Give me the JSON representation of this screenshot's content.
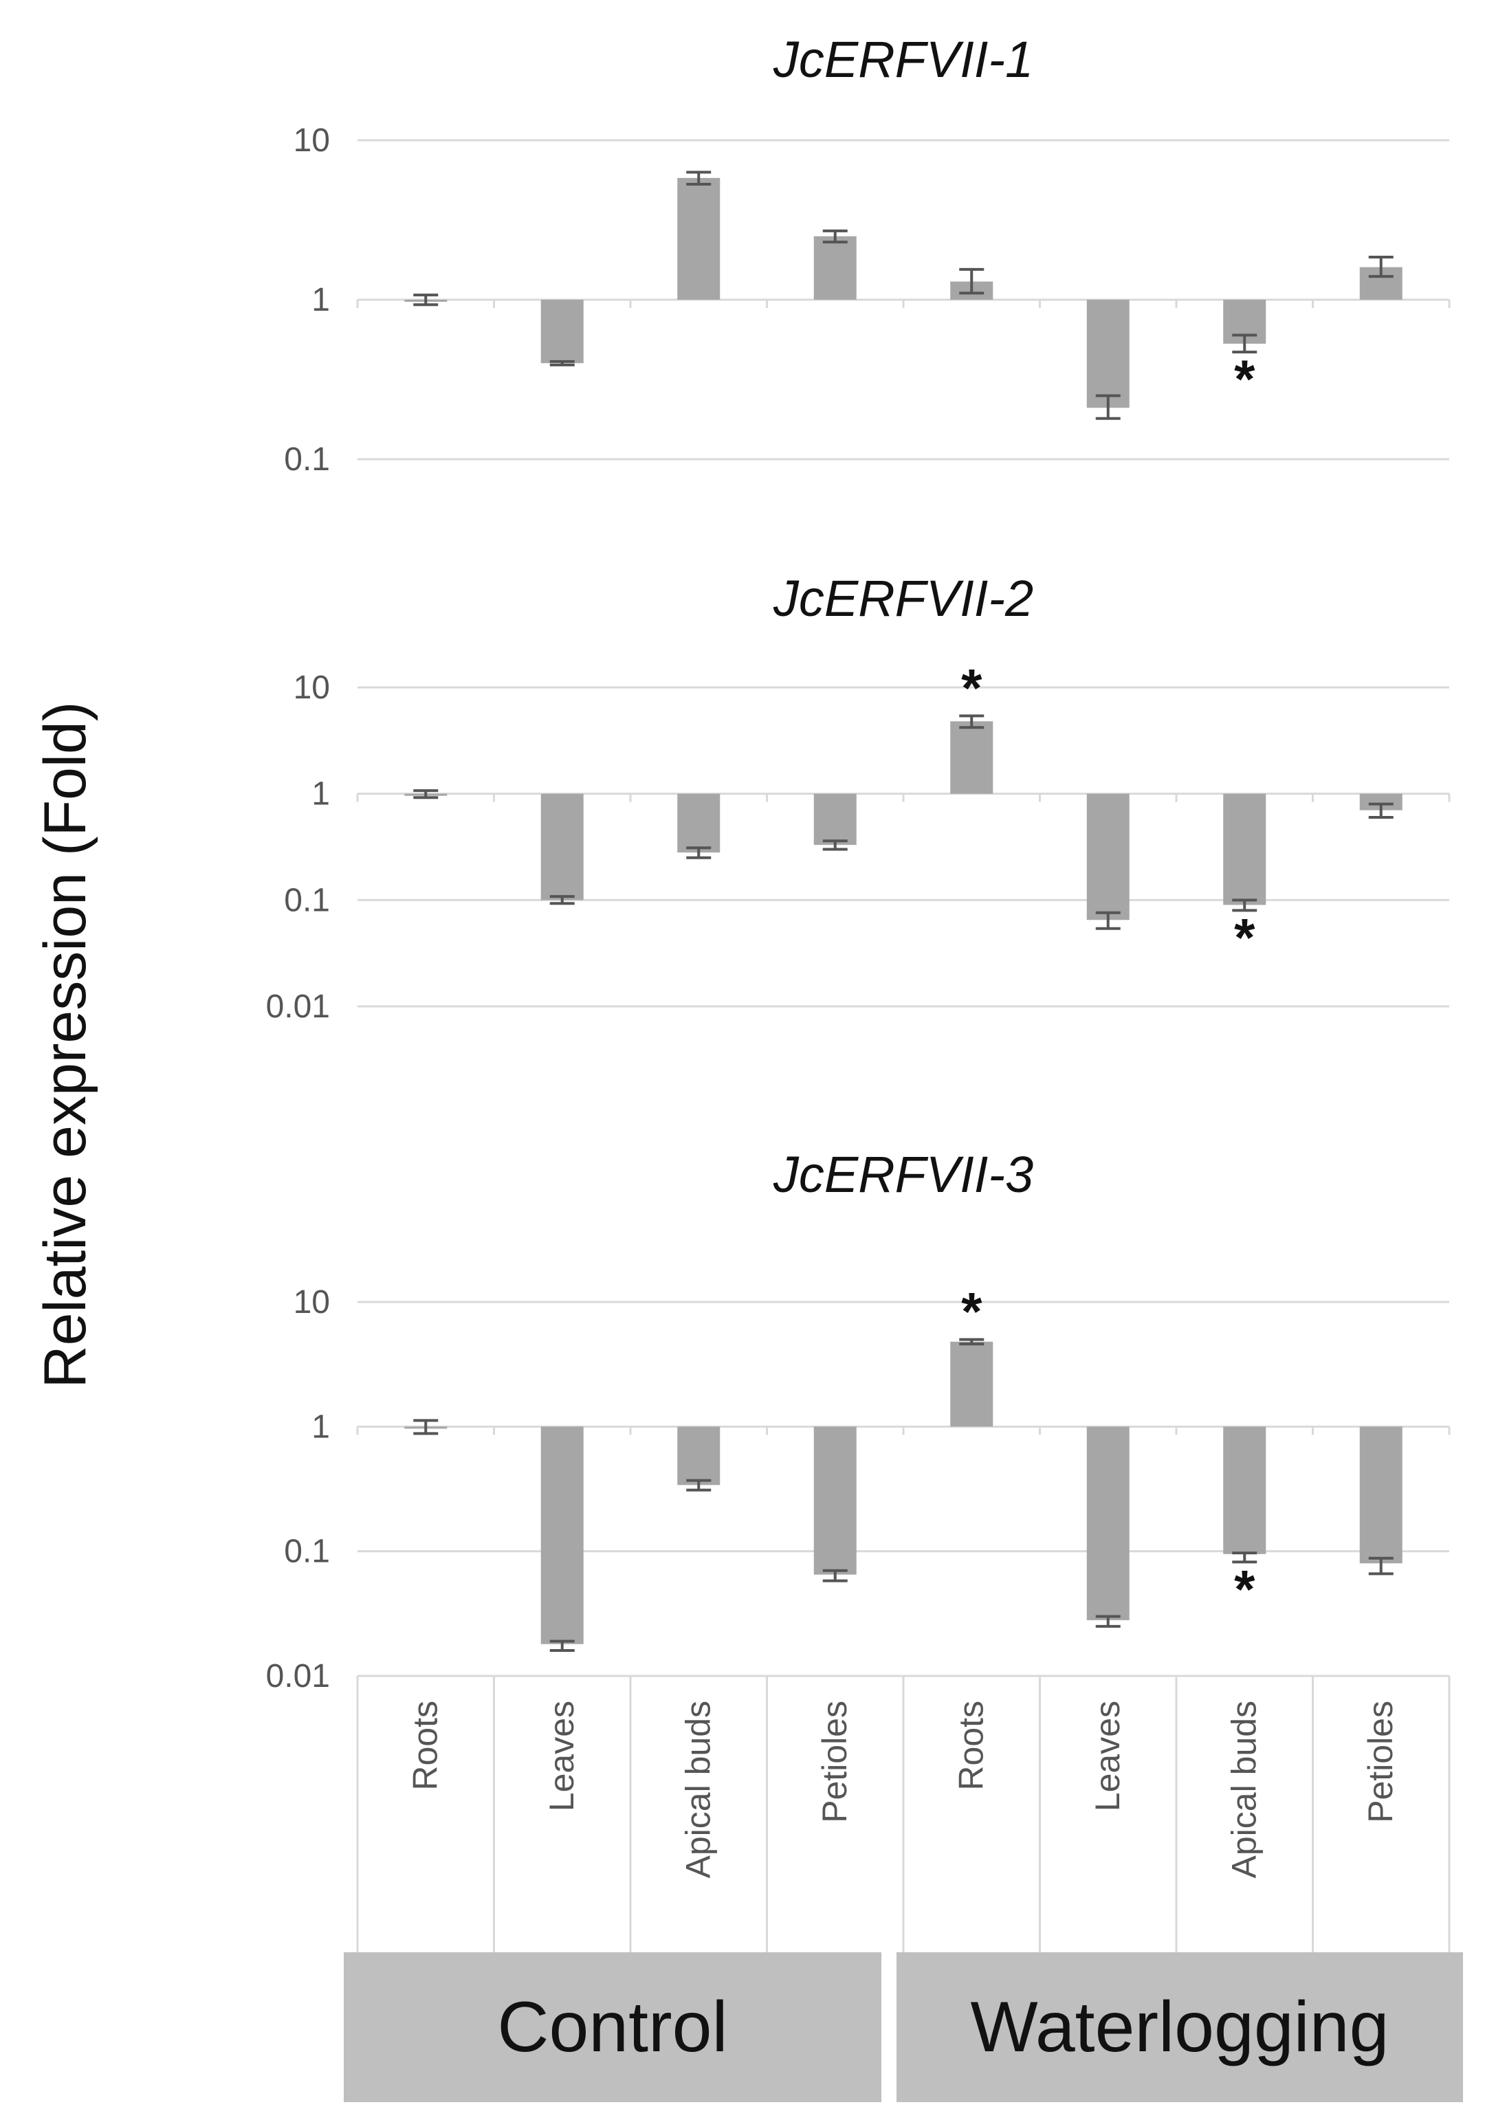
{
  "y_axis_label": "Relative expression (Fold)",
  "chart_data": {
    "type": "bar",
    "scale": "log",
    "categories": [
      "Roots",
      "Leaves",
      "Apical buds",
      "Petioles",
      "Roots",
      "Leaves",
      "Apical buds",
      "Petioles"
    ],
    "groups": [
      {
        "name": "Control",
        "categories": [
          "Roots",
          "Leaves",
          "Apical buds",
          "Petioles"
        ]
      },
      {
        "name": "Waterlogging",
        "categories": [
          "Roots",
          "Leaves",
          "Apical buds",
          "Petioles"
        ]
      }
    ],
    "ylabel": "Relative expression (Fold)",
    "bar_color": "#a6a6a6",
    "panels": [
      {
        "title": "JcERFVII-1",
        "ylim": [
          0.1,
          10
        ],
        "ticks": [
          {
            "value": 10,
            "label": "10"
          },
          {
            "value": 1,
            "label": "1"
          },
          {
            "value": 0.1,
            "label": "0.1"
          }
        ],
        "values": [
          1.0,
          0.4,
          5.8,
          2.5,
          1.3,
          0.21,
          0.53,
          1.6
        ],
        "err_low": [
          0.93,
          0.39,
          5.3,
          2.3,
          1.1,
          0.18,
          0.47,
          1.4
        ],
        "err_high": [
          1.07,
          0.41,
          6.3,
          2.7,
          1.55,
          0.25,
          0.6,
          1.85
        ],
        "significant": [
          false,
          false,
          false,
          false,
          false,
          false,
          true,
          false
        ]
      },
      {
        "title": "JcERFVII-2",
        "ylim": [
          0.01,
          10
        ],
        "ticks": [
          {
            "value": 10,
            "label": "10"
          },
          {
            "value": 1,
            "label": "1"
          },
          {
            "value": 0.1,
            "label": "0.1"
          },
          {
            "value": 0.01,
            "label": "0.01"
          }
        ],
        "values": [
          1.0,
          0.1,
          0.28,
          0.33,
          4.8,
          0.065,
          0.09,
          0.7
        ],
        "err_low": [
          0.92,
          0.093,
          0.25,
          0.3,
          4.2,
          0.054,
          0.08,
          0.6
        ],
        "err_high": [
          1.07,
          0.108,
          0.31,
          0.36,
          5.4,
          0.076,
          0.1,
          0.8
        ],
        "significant": [
          false,
          false,
          false,
          false,
          true,
          false,
          true,
          false
        ]
      },
      {
        "title": "JcERFVII-3",
        "ylim": [
          0.01,
          10
        ],
        "ticks": [
          {
            "value": 10,
            "label": "10"
          },
          {
            "value": 1,
            "label": "1"
          },
          {
            "value": 0.1,
            "label": "0.1"
          },
          {
            "value": 0.01,
            "label": "0.01"
          }
        ],
        "values": [
          1.0,
          0.018,
          0.34,
          0.065,
          4.8,
          0.028,
          0.095,
          0.08
        ],
        "err_low": [
          0.88,
          0.016,
          0.31,
          0.058,
          4.6,
          0.025,
          0.082,
          0.066
        ],
        "err_high": [
          1.12,
          0.019,
          0.37,
          0.07,
          5.0,
          0.03,
          0.097,
          0.088
        ],
        "significant": [
          false,
          false,
          false,
          false,
          true,
          false,
          true,
          false
        ]
      }
    ]
  }
}
